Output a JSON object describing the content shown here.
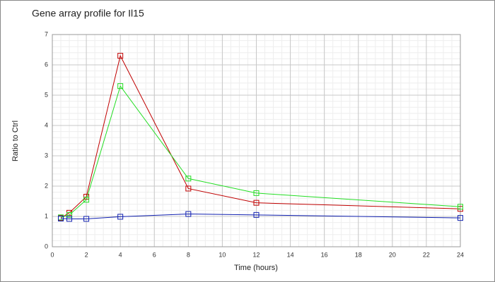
{
  "chart_data": {
    "type": "line",
    "title": "Gene array profile for Il15",
    "x_label": "Time (hours)",
    "y_label": "Ratio to Ctrl",
    "x": [
      0.5,
      1,
      2,
      4,
      8,
      12,
      24
    ],
    "series": [
      {
        "color": "#c00000",
        "values": [
          0.95,
          1.12,
          1.65,
          6.3,
          1.92,
          1.45,
          1.25
        ]
      },
      {
        "color": "#22dd22",
        "values": [
          0.97,
          1.05,
          1.55,
          5.3,
          2.25,
          1.77,
          1.32
        ]
      },
      {
        "color": "#1020b0",
        "values": [
          0.93,
          0.92,
          0.92,
          0.99,
          1.08,
          1.05,
          0.95
        ]
      }
    ],
    "xlim": [
      0,
      24
    ],
    "xticks": [
      0,
      2,
      4,
      6,
      8,
      10,
      12,
      14,
      16,
      18,
      20,
      22,
      24
    ],
    "ylim": [
      0,
      7
    ],
    "yticks": [
      0,
      1,
      2,
      3,
      4,
      5,
      6,
      7
    ],
    "grid": true,
    "marker": "square"
  }
}
